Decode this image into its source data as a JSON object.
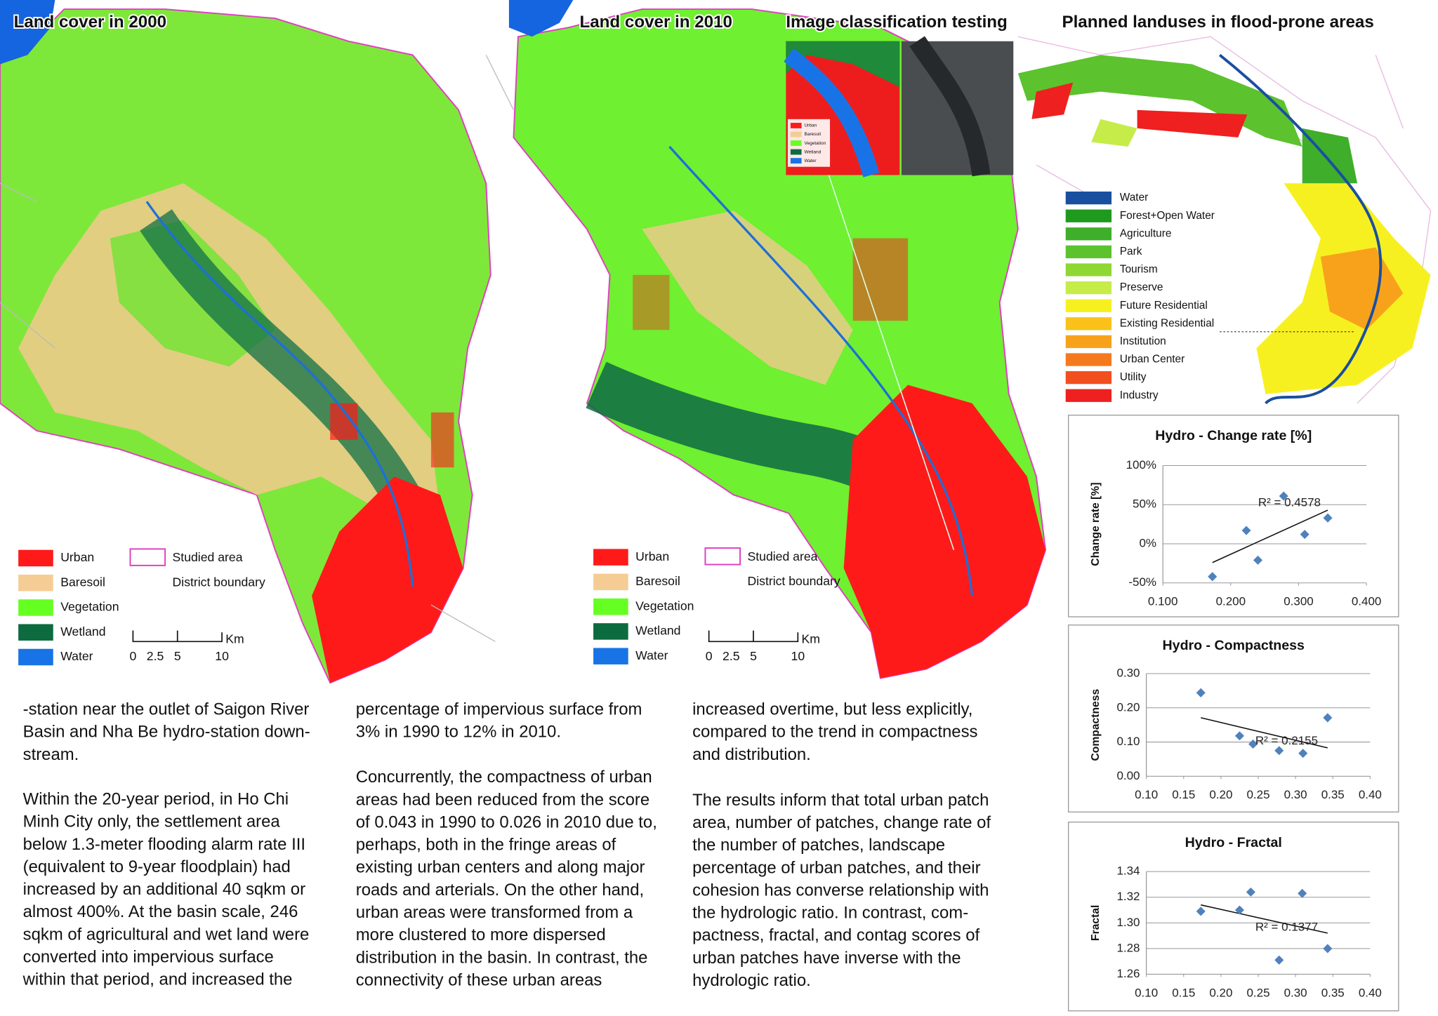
{
  "maps": [
    {
      "title": "Land cover in 2000",
      "legend": [
        {
          "label": "Urban",
          "color": "#ff1a1a"
        },
        {
          "label": "Baresoil",
          "color": "#f5cd94"
        },
        {
          "label": "Vegetation",
          "color": "#66ff22"
        },
        {
          "label": "Wetland",
          "color": "#0d6b40"
        },
        {
          "label": "Water",
          "color": "#1874e6"
        }
      ],
      "boundary_legend": [
        "Studied area",
        "District boundary"
      ],
      "scale": {
        "ticks": [
          0,
          2.5,
          5,
          10
        ],
        "unit": "Km"
      }
    },
    {
      "title": "Land cover in 2010",
      "legend": [
        {
          "label": "Urban",
          "color": "#ff1a1a"
        },
        {
          "label": "Baresoil",
          "color": "#f5cd94"
        },
        {
          "label": "Vegetation",
          "color": "#66ff22"
        },
        {
          "label": "Wetland",
          "color": "#0d6b40"
        },
        {
          "label": "Water",
          "color": "#1874e6"
        }
      ],
      "boundary_legend": [
        "Studied area",
        "District boundary"
      ],
      "scale": {
        "ticks": [
          0,
          2.5,
          5,
          10
        ],
        "unit": "Km"
      }
    }
  ],
  "classification": {
    "title": "Image classification testing",
    "legend": [
      {
        "label": "Urban",
        "color": "#ff1a1a"
      },
      {
        "label": "Baresoil",
        "color": "#f5cd94"
      },
      {
        "label": "Vegetation",
        "color": "#66ff22"
      },
      {
        "label": "Wetland",
        "color": "#0d6b40"
      },
      {
        "label": "Water",
        "color": "#1874e6"
      }
    ]
  },
  "planned": {
    "title": "Planned landuses in flood-prone areas",
    "legend": [
      {
        "label": "Water",
        "color": "#1a4fa0"
      },
      {
        "label": "Forest+Open Water",
        "color": "#1e9a1e"
      },
      {
        "label": "Agriculture",
        "color": "#3fae2a"
      },
      {
        "label": "Park",
        "color": "#5cc22e"
      },
      {
        "label": "Tourism",
        "color": "#8fd833"
      },
      {
        "label": "Preserve",
        "color": "#c6ec4a"
      },
      {
        "label": "Future Residential",
        "color": "#f7f020"
      },
      {
        "label": "Existing Residential",
        "color": "#f9c11a"
      },
      {
        "label": "Institution",
        "color": "#f8a21c"
      },
      {
        "label": "Urban Center",
        "color": "#f57a1d"
      },
      {
        "label": "Utility",
        "color": "#f24f1f"
      },
      {
        "label": "Industry",
        "color": "#ee2020"
      }
    ]
  },
  "text_columns": [
    [
      [
        "-station near the outlet of Saigon River",
        "Basin and Nha Be hydro-station down-",
        "stream."
      ],
      [
        "Within the 20-year period, in Ho Chi",
        "Minh City only, the settlement area",
        "below 1.3-meter flooding alarm rate III",
        "(equivalent to 9-year floodplain) had",
        "increased by  an additional 40 sqkm or",
        "almost 400%. At the basin scale, 246",
        "sqkm of agricultural and wet land were",
        "converted into impervious surface",
        "within that period, and increased the"
      ]
    ],
    [
      [
        "percentage of impervious surface from",
        "3% in 1990 to 12% in 2010."
      ],
      [
        "Concurrently, the compactness of urban",
        "areas had been reduced from the score",
        "of 0.043 in 1990 to 0.026 in 2010 due to,",
        "perhaps, both in the fringe areas of",
        "existing urban centers and along major",
        "roads and arterials. On the other hand,",
        "urban areas were transformed from a",
        "more clustered to more dispersed",
        "distribution in the basin. In contrast, the",
        "connectivity of these urban areas"
      ]
    ],
    [
      [
        "increased overtime, but less explicitly,",
        "compared to the trend in compactness",
        "and distribution."
      ],
      [
        "The results inform that total urban patch",
        "area, number of patches, change rate of",
        "the number of patches, landscape",
        "percentage of urban patches, and their",
        "cohesion has converse relationship with",
        "the hydrologic ratio. In contrast, com-",
        "pactness, fractal, and contag scores of",
        "urban patches have inverse with the",
        "hydrologic ratio."
      ]
    ]
  ],
  "chart_data": [
    {
      "type": "scatter",
      "title": "Hydro - Change rate [%]",
      "y_label": "Change rate [%]",
      "x": [
        0.173,
        0.223,
        0.24,
        0.278,
        0.309,
        0.343
      ],
      "values": [
        -42,
        17,
        -21,
        61,
        12,
        33
      ],
      "color": "#4f81bd",
      "trendline": {
        "x": [
          0.173,
          0.343
        ],
        "y": [
          -24,
          43
        ]
      },
      "annotation": "R² = 0.4578",
      "xlim": [
        0.1,
        0.4
      ],
      "ylim": [
        -50,
        100
      ],
      "xticks": [
        {
          "value": 0.1,
          "label": "0.100"
        },
        {
          "value": 0.2,
          "label": "0.200"
        },
        {
          "value": 0.3,
          "label": "0.300"
        },
        {
          "value": 0.4,
          "label": "0.400"
        }
      ],
      "yticks": [
        {
          "value": -50,
          "label": "-50%"
        },
        {
          "value": 0,
          "label": "0%"
        },
        {
          "value": 50,
          "label": "50%"
        },
        {
          "value": 100,
          "label": "100%"
        }
      ],
      "grid": true
    },
    {
      "type": "scatter",
      "title": "Hydro - Compactness",
      "y_label": "Compactness",
      "x": [
        0.173,
        0.225,
        0.243,
        0.278,
        0.31,
        0.343
      ],
      "values": [
        0.244,
        0.118,
        0.094,
        0.075,
        0.067,
        0.171
      ],
      "color": "#4f81bd",
      "trendline": {
        "x": [
          0.173,
          0.343
        ],
        "y": [
          0.171,
          0.083
        ]
      },
      "annotation": "R² = 0.2155",
      "xlim": [
        0.1,
        0.4
      ],
      "ylim": [
        0,
        0.3
      ],
      "xticks": [
        {
          "value": 0.1,
          "label": "0.10"
        },
        0.15,
        {
          "value": 0.2,
          "label": "0.20"
        },
        0.25,
        {
          "value": 0.3,
          "label": "0.30"
        },
        0.35,
        {
          "value": 0.4,
          "label": "0.40"
        }
      ],
      "yticks": [
        {
          "value": 0,
          "label": "0.00"
        },
        {
          "value": 0.1,
          "label": "0.10"
        },
        {
          "value": 0.2,
          "label": "0.20"
        },
        {
          "value": 0.3,
          "label": "0.30"
        }
      ],
      "grid": true
    },
    {
      "type": "scatter",
      "title": "Hydro - Fractal",
      "y_label": "Fractal",
      "x": [
        0.173,
        0.225,
        0.24,
        0.278,
        0.309,
        0.343
      ],
      "values": [
        1.309,
        1.31,
        1.324,
        1.271,
        1.323,
        1.28
      ],
      "color": "#4f81bd",
      "trendline": {
        "x": [
          0.173,
          0.343
        ],
        "y": [
          1.314,
          1.292
        ]
      },
      "annotation": "R² = 0.1377",
      "xlim": [
        0.1,
        0.4
      ],
      "ylim": [
        1.26,
        1.34
      ],
      "xticks": [
        {
          "value": 0.1,
          "label": "0.10"
        },
        0.15,
        {
          "value": 0.2,
          "label": "0.20"
        },
        0.25,
        {
          "value": 0.3,
          "label": "0.30"
        },
        0.35,
        {
          "value": 0.4,
          "label": "0.40"
        }
      ],
      "yticks": [
        1.26,
        1.28,
        {
          "value": 1.3,
          "label": "1.30"
        },
        1.32,
        1.34
      ],
      "grid": true
    }
  ]
}
